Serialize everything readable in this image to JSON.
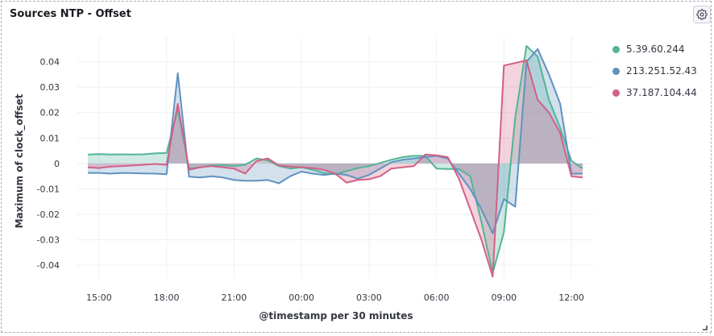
{
  "panel": {
    "title": "Sources NTP - Offset",
    "settings_icon": "gear-icon"
  },
  "chart_data": {
    "type": "area",
    "xlabel": "@timestamp per 30 minutes",
    "ylabel": "Maximum of clock_offset",
    "x_ticks": [
      "15:00",
      "18:00",
      "21:00",
      "00:00",
      "03:00",
      "06:00",
      "09:00",
      "12:00"
    ],
    "x_tick_hours": [
      15,
      18,
      21,
      24,
      27,
      30,
      33,
      36
    ],
    "xlim_hours": [
      14,
      37
    ],
    "ylim": [
      -0.045,
      0.05
    ],
    "y_ticks": [
      0.04,
      0.03,
      0.02,
      0.01,
      0,
      -0.01,
      -0.02,
      -0.03,
      -0.04
    ],
    "y_tick_labels": [
      "0.04",
      "0.03",
      "0.02",
      "0.01",
      "0",
      "-0.01",
      "-0.02",
      "-0.03",
      "-0.04"
    ],
    "grid": true,
    "legend_position": "right",
    "series": [
      {
        "name": "5.39.60.244",
        "color": "#54b399",
        "x": [
          14.5,
          15.0,
          15.5,
          16.0,
          16.5,
          17.0,
          17.5,
          18.0,
          18.5,
          19.0,
          19.5,
          20.0,
          20.5,
          21.0,
          21.5,
          22.0,
          22.5,
          23.0,
          23.5,
          24.0,
          24.5,
          25.0,
          25.5,
          26.0,
          26.5,
          27.0,
          27.5,
          28.0,
          28.5,
          29.0,
          29.5,
          30.0,
          30.5,
          31.0,
          31.5,
          32.0,
          32.5,
          33.0,
          33.5,
          34.0,
          34.5,
          35.0,
          35.5,
          36.0,
          36.5
        ],
        "values": [
          0.0035,
          0.0037,
          0.0035,
          0.0036,
          0.0035,
          0.0036,
          0.004,
          0.0041,
          0.0213,
          -0.002,
          -0.0015,
          -0.0008,
          -0.0007,
          -0.001,
          -0.0005,
          0.002,
          0.0012,
          -0.001,
          -0.002,
          -0.0015,
          -0.0025,
          -0.0038,
          -0.0042,
          -0.003,
          -0.0018,
          -0.001,
          0.0002,
          0.0015,
          0.0025,
          0.003,
          0.003,
          -0.002,
          -0.0022,
          -0.0022,
          -0.005,
          -0.023,
          -0.043,
          -0.027,
          0.018,
          0.0462,
          0.042,
          0.025,
          0.014,
          0.001,
          -0.002
        ]
      },
      {
        "name": "213.251.52.43",
        "color": "#6092c0",
        "x": [
          14.5,
          15.0,
          15.5,
          16.0,
          16.5,
          17.0,
          17.5,
          18.0,
          18.5,
          19.0,
          19.5,
          20.0,
          20.5,
          21.0,
          21.5,
          22.0,
          22.5,
          23.0,
          23.5,
          24.0,
          24.5,
          25.0,
          25.5,
          26.0,
          26.5,
          27.0,
          27.5,
          28.0,
          28.5,
          29.0,
          29.5,
          30.0,
          30.5,
          31.0,
          31.5,
          32.0,
          32.5,
          33.0,
          33.5,
          34.0,
          34.5,
          35.0,
          35.5,
          36.0,
          36.5
        ],
        "values": [
          -0.0037,
          -0.0037,
          -0.004,
          -0.0037,
          -0.0038,
          -0.0039,
          -0.004,
          -0.0042,
          0.0355,
          -0.0052,
          -0.0055,
          -0.005,
          -0.0055,
          -0.0065,
          -0.0068,
          -0.0068,
          -0.0065,
          -0.0078,
          -0.005,
          -0.0032,
          -0.004,
          -0.0045,
          -0.004,
          -0.0045,
          -0.006,
          -0.0045,
          -0.002,
          0.0005,
          0.0015,
          0.002,
          0.0025,
          0.003,
          0.002,
          -0.004,
          -0.01,
          -0.018,
          -0.0275,
          -0.014,
          -0.017,
          0.04,
          0.045,
          0.035,
          0.0235,
          -0.004,
          -0.004
        ]
      },
      {
        "name": "37.187.104.44",
        "color": "#d36086",
        "x": [
          14.5,
          15.0,
          15.5,
          16.0,
          16.5,
          17.0,
          17.5,
          18.0,
          18.5,
          19.0,
          19.5,
          20.0,
          20.5,
          21.0,
          21.5,
          22.0,
          22.5,
          23.0,
          23.5,
          24.0,
          24.5,
          25.0,
          25.5,
          26.0,
          26.5,
          27.0,
          27.5,
          28.0,
          28.5,
          29.0,
          29.5,
          30.0,
          30.5,
          31.0,
          31.5,
          32.0,
          32.5,
          33.0,
          33.5,
          34.0,
          34.5,
          35.0,
          35.5,
          36.0,
          36.5
        ],
        "values": [
          -0.0015,
          -0.0018,
          -0.0012,
          -0.001,
          -0.0008,
          -0.0005,
          -0.0002,
          -0.0005,
          0.0235,
          -0.0025,
          -0.0015,
          -0.001,
          -0.0015,
          -0.002,
          -0.004,
          0.001,
          0.002,
          -0.0008,
          -0.0012,
          -0.0015,
          -0.0018,
          -0.0025,
          -0.004,
          -0.0075,
          -0.0065,
          -0.0062,
          -0.005,
          -0.002,
          -0.0015,
          -0.001,
          0.0035,
          0.0032,
          0.0025,
          -0.006,
          -0.018,
          -0.03,
          -0.0445,
          0.0385,
          0.0395,
          0.0405,
          0.025,
          0.02,
          0.012,
          -0.005,
          -0.0055
        ]
      }
    ]
  }
}
